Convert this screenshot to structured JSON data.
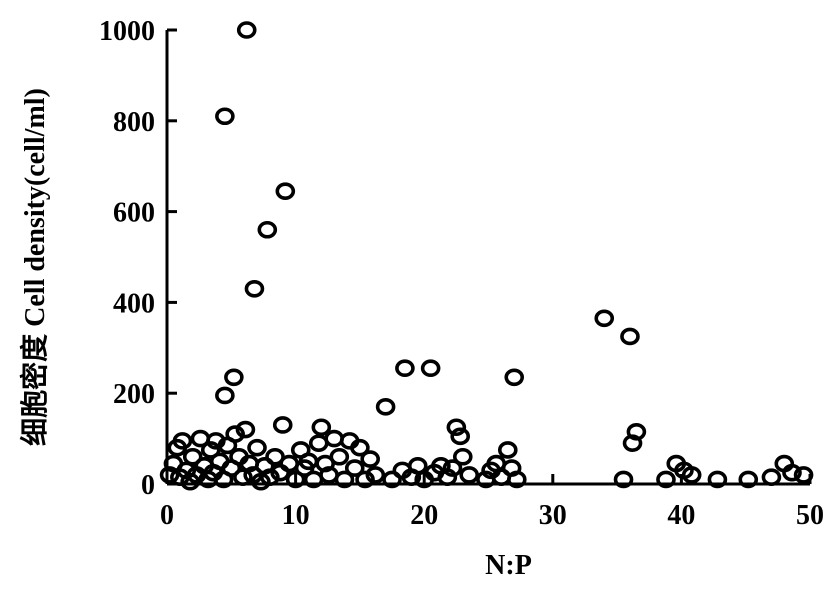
{
  "chart_data": {
    "type": "scatter",
    "title": "",
    "xlabel": "N:P",
    "ylabel": "细胞密度 Cell density(cell/ml)",
    "xlim": [
      0,
      50
    ],
    "ylim": [
      0,
      1000
    ],
    "xticks": [
      0,
      10,
      20,
      30,
      40,
      50
    ],
    "yticks": [
      0,
      200,
      400,
      600,
      800,
      1000
    ],
    "grid": false,
    "legend": "none",
    "marker": "open-circle",
    "series": [
      {
        "points": [
          [
            6.2,
            1000
          ],
          [
            4.5,
            810
          ],
          [
            9.2,
            645
          ],
          [
            7.8,
            560
          ],
          [
            6.8,
            430
          ],
          [
            4.5,
            195
          ],
          [
            5.2,
            235
          ],
          [
            17.0,
            170
          ],
          [
            18.5,
            255
          ],
          [
            20.5,
            255
          ],
          [
            27.0,
            235
          ],
          [
            34.0,
            365
          ],
          [
            36.0,
            325
          ],
          [
            9.0,
            130
          ],
          [
            12.0,
            125
          ],
          [
            22.5,
            125
          ],
          [
            22.8,
            105
          ],
          [
            36.5,
            115
          ],
          [
            36.2,
            90
          ],
          [
            26.5,
            75
          ],
          [
            0.2,
            20
          ],
          [
            0.5,
            45
          ],
          [
            0.8,
            80
          ],
          [
            1.0,
            15
          ],
          [
            1.2,
            95
          ],
          [
            1.5,
            30
          ],
          [
            1.8,
            5
          ],
          [
            2.0,
            60
          ],
          [
            2.3,
            20
          ],
          [
            2.6,
            100
          ],
          [
            2.9,
            40
          ],
          [
            3.2,
            10
          ],
          [
            3.4,
            75
          ],
          [
            3.6,
            25
          ],
          [
            3.8,
            95
          ],
          [
            4.1,
            50
          ],
          [
            4.4,
            10
          ],
          [
            4.7,
            85
          ],
          [
            5.0,
            35
          ],
          [
            5.3,
            110
          ],
          [
            5.6,
            60
          ],
          [
            5.9,
            15
          ],
          [
            6.1,
            120
          ],
          [
            6.4,
            45
          ],
          [
            6.7,
            20
          ],
          [
            7.0,
            80
          ],
          [
            7.3,
            5
          ],
          [
            7.6,
            40
          ],
          [
            8.0,
            15
          ],
          [
            8.4,
            60
          ],
          [
            8.8,
            25
          ],
          [
            9.5,
            45
          ],
          [
            10.0,
            10
          ],
          [
            10.4,
            75
          ],
          [
            10.7,
            35
          ],
          [
            11.0,
            50
          ],
          [
            11.4,
            10
          ],
          [
            11.8,
            90
          ],
          [
            12.3,
            45
          ],
          [
            12.6,
            20
          ],
          [
            13.0,
            100
          ],
          [
            13.4,
            60
          ],
          [
            13.8,
            10
          ],
          [
            14.2,
            95
          ],
          [
            14.6,
            35
          ],
          [
            15.0,
            80
          ],
          [
            15.4,
            10
          ],
          [
            15.8,
            55
          ],
          [
            16.2,
            20
          ],
          [
            17.5,
            10
          ],
          [
            18.3,
            30
          ],
          [
            19.0,
            15
          ],
          [
            19.5,
            40
          ],
          [
            20.0,
            10
          ],
          [
            20.8,
            25
          ],
          [
            21.3,
            40
          ],
          [
            21.8,
            15
          ],
          [
            22.2,
            35
          ],
          [
            23.0,
            60
          ],
          [
            23.5,
            20
          ],
          [
            24.8,
            10
          ],
          [
            25.2,
            30
          ],
          [
            25.6,
            45
          ],
          [
            26.0,
            15
          ],
          [
            26.8,
            35
          ],
          [
            27.2,
            10
          ],
          [
            35.5,
            10
          ],
          [
            38.8,
            10
          ],
          [
            39.6,
            45
          ],
          [
            40.2,
            30
          ],
          [
            40.8,
            20
          ],
          [
            42.8,
            10
          ],
          [
            45.2,
            10
          ],
          [
            47.0,
            15
          ],
          [
            48.0,
            45
          ],
          [
            48.6,
            25
          ],
          [
            49.5,
            20
          ]
        ]
      }
    ]
  }
}
